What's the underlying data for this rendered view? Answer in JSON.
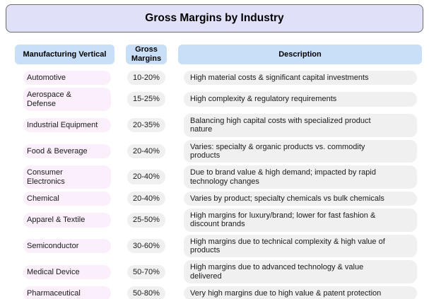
{
  "title": "Gross Margins by Industry",
  "table": {
    "headers": [
      "Manufacturing Vertical",
      "Gross Margins",
      "Description"
    ],
    "rows": [
      {
        "vertical": "Automotive",
        "margin": "10-20%",
        "description": "High material costs & significant capital investments"
      },
      {
        "vertical": "Aerospace &\nDefense",
        "margin": "15-25%",
        "description": "High complexity & regulatory requirements"
      },
      {
        "vertical": "Industrial Equipment",
        "margin": "20-35%",
        "description": "Balancing high capital costs with specialized product\nnature"
      },
      {
        "vertical": "Food & Beverage",
        "margin": "20-40%",
        "description": "Varies: specialty & organic products vs. commodity\nproducts"
      },
      {
        "vertical": "Consumer\nElectronics",
        "margin": "20-40%",
        "description": "Due to brand value & high demand; impacted by rapid\ntechnology changes"
      },
      {
        "vertical": "Chemical",
        "margin": "20-40%",
        "description": "Varies by product; specialty chemicals vs bulk chemicals"
      },
      {
        "vertical": "Apparel & Textile",
        "margin": "25-50%",
        "description": "High margins for luxury/brand; lower for fast fashion &\ndiscount brands"
      },
      {
        "vertical": "Semiconductor",
        "margin": "30-60%",
        "description": "High margins due to technical complexity & high value of\nproducts"
      },
      {
        "vertical": "Medical Device",
        "margin": "50-70%",
        "description": "High margins due to advanced technology & value\ndelivered"
      },
      {
        "vertical": "Pharmaceutical",
        "margin": "50-80%",
        "description": "Very high margins due to high value & patent protection"
      }
    ]
  },
  "chart_data": {
    "type": "table",
    "title": "Gross Margins by Industry",
    "columns": [
      "Manufacturing Vertical",
      "Gross Margins",
      "Description"
    ],
    "rows": [
      [
        "Automotive",
        "10-20%",
        "High material costs & significant capital investments"
      ],
      [
        "Aerospace & Defense",
        "15-25%",
        "High complexity & regulatory requirements"
      ],
      [
        "Industrial Equipment",
        "20-35%",
        "Balancing high capital costs with specialized product nature"
      ],
      [
        "Food & Beverage",
        "20-40%",
        "Varies: specialty & organic products vs. commodity products"
      ],
      [
        "Consumer Electronics",
        "20-40%",
        "Due to brand value & high demand; impacted by rapid technology changes"
      ],
      [
        "Chemical",
        "20-40%",
        "Varies by product; specialty chemicals vs bulk chemicals"
      ],
      [
        "Apparel & Textile",
        "25-50%",
        "High margins for luxury/brand; lower for fast fashion & discount brands"
      ],
      [
        "Semiconductor",
        "30-60%",
        "High margins due to technical complexity & high value of products"
      ],
      [
        "Medical Device",
        "50-70%",
        "High margins due to advanced technology & value delivered"
      ],
      [
        "Pharmaceutical",
        "50-80%",
        "Very high margins due to high value & patent protection"
      ]
    ]
  },
  "colors": {
    "title_bg": "#e0e1f9",
    "title_border": "#6b6b6b",
    "header_bg": "#c9def7",
    "vertical_cell_bg": "#faeffb",
    "value_cell_bg": "#f0f0f0",
    "text": "#111111"
  }
}
